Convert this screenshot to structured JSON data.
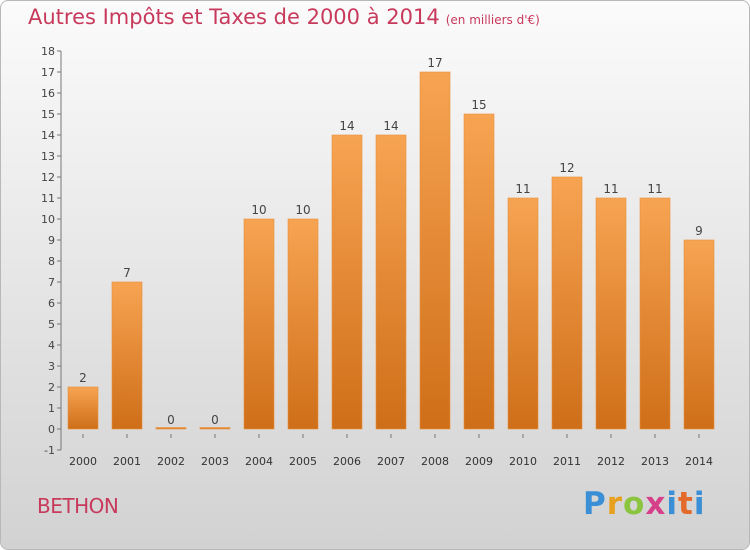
{
  "title": "Autres Impôts et Taxes de 2000 à 2014",
  "unit": "(en milliers d'€)",
  "commune": "BETHON",
  "logo": "Proxiti",
  "colors": {
    "title": "#c83a5c",
    "bar_top": "#f7a452",
    "bar_bottom": "#cf6e19",
    "axis": "#666666"
  },
  "chart_data": {
    "type": "bar",
    "title": "Autres Impôts et Taxes de 2000 à 2014",
    "subtitle": "(en milliers d'€)",
    "categories": [
      "2000",
      "2001",
      "2002",
      "2003",
      "2004",
      "2005",
      "2006",
      "2007",
      "2008",
      "2009",
      "2010",
      "2011",
      "2012",
      "2013",
      "2014"
    ],
    "values": [
      2,
      7,
      0,
      0,
      10,
      10,
      14,
      14,
      17,
      15,
      11,
      12,
      11,
      11,
      9
    ],
    "ylim": [
      -1,
      18
    ],
    "yticks": [
      -1,
      0,
      1,
      2,
      3,
      4,
      5,
      6,
      7,
      8,
      9,
      10,
      11,
      12,
      13,
      14,
      15,
      16,
      17,
      18
    ],
    "grid": false,
    "xlabel": "",
    "ylabel": ""
  }
}
